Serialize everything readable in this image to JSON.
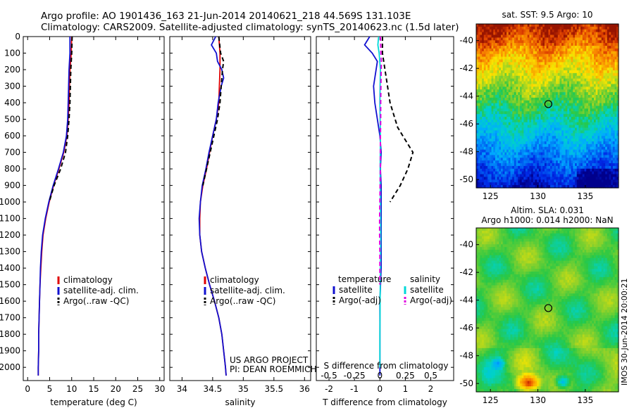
{
  "header": {
    "line1": "Argo profile: AO 1901436_163 21-Jun-2014 20140621_218 44.569S 131.103E",
    "line2": "Climatology: CARS2009. Satellite-adjusted climatology: synTS_20140623.nc (1.5d later)"
  },
  "colors": {
    "climatology": "#e00000",
    "satellite": "#1010d0",
    "argo": "#000000",
    "sat_salinity": "#00d8d8",
    "argo_salinity_diff": "#e000e0"
  },
  "chart_data": [
    {
      "type": "line",
      "name": "temperature-profile",
      "xlabel": "temperature (deg C)",
      "xlim": [
        -1,
        31
      ],
      "xticks": [
        0,
        5,
        10,
        15,
        20,
        25,
        30
      ],
      "ylim": [
        0,
        2080
      ],
      "yticks": [
        0,
        100,
        200,
        300,
        400,
        500,
        600,
        700,
        800,
        900,
        1000,
        1100,
        1200,
        1300,
        1400,
        1500,
        1600,
        1700,
        1800,
        1900,
        2000
      ],
      "legend": [
        "climatology",
        "satellite-adj. clim.",
        "Argo(..raw -QC)"
      ],
      "series": [
        {
          "name": "climatology",
          "style": "solid",
          "color": "#e00000",
          "depth": [
            0,
            100,
            200,
            300,
            400,
            500,
            600,
            700,
            800,
            900,
            1000,
            1100,
            1200,
            1300,
            1400,
            1500,
            1600,
            1700,
            1800,
            1900,
            2000,
            2050
          ],
          "values": [
            10.0,
            9.9,
            9.6,
            9.5,
            9.4,
            9.2,
            8.9,
            8.2,
            7.1,
            5.9,
            4.9,
            4.1,
            3.5,
            3.2,
            3.0,
            2.8,
            2.7,
            2.6,
            2.5,
            2.5,
            2.4,
            2.4
          ]
        },
        {
          "name": "satellite-adj. clim.",
          "style": "solid",
          "color": "#1010d0",
          "depth": [
            0,
            100,
            200,
            300,
            400,
            500,
            600,
            700,
            800,
            900,
            1000,
            1100,
            1200,
            1300,
            1400,
            1500,
            1600,
            1700,
            1800,
            1900,
            2000,
            2050
          ],
          "values": [
            9.6,
            9.6,
            9.4,
            9.3,
            9.2,
            9.1,
            8.8,
            8.1,
            7.0,
            5.8,
            4.8,
            4.0,
            3.4,
            3.1,
            2.9,
            2.8,
            2.7,
            2.6,
            2.5,
            2.5,
            2.4,
            2.4
          ]
        },
        {
          "name": "Argo(..raw -QC)",
          "style": "dashed",
          "color": "#000000",
          "depth": [
            0,
            100,
            200,
            300,
            400,
            500,
            600,
            700,
            800,
            900,
            1000
          ],
          "values": [
            10.1,
            10.0,
            9.8,
            9.7,
            9.6,
            9.4,
            9.1,
            8.6,
            7.5,
            6.0,
            4.9
          ]
        }
      ]
    },
    {
      "type": "line",
      "name": "salinity-profile",
      "xlabel": "salinity",
      "xlim": [
        33.8,
        36.1
      ],
      "xticks": [
        34,
        34.5,
        35,
        35.5,
        36
      ],
      "ylim": [
        0,
        2080
      ],
      "legend": [
        "climatology",
        "satellite-adj. clim.",
        "Argo(..raw -QC)"
      ],
      "annotations": [
        "US ARGO PROJECT",
        "PI: DEAN ROEMMICH"
      ],
      "series": [
        {
          "name": "climatology",
          "style": "solid",
          "color": "#e00000",
          "depth": [
            0,
            100,
            200,
            300,
            400,
            500,
            600,
            700,
            800,
            900,
            1000,
            1100,
            1200,
            1300,
            1400,
            1500,
            1600,
            1700,
            1800,
            1900,
            2000,
            2050
          ],
          "values": [
            34.6,
            34.62,
            34.62,
            34.61,
            34.6,
            34.56,
            34.5,
            34.45,
            34.4,
            34.34,
            34.3,
            34.29,
            34.29,
            34.32,
            34.38,
            34.45,
            34.53,
            34.6,
            34.65,
            34.68,
            34.71,
            34.72
          ]
        },
        {
          "name": "satellite-adj. clim.",
          "style": "solid",
          "color": "#1010d0",
          "depth": [
            0,
            50,
            100,
            150,
            200,
            250,
            300,
            400,
            500,
            600,
            700,
            800,
            900,
            1000,
            1100,
            1200,
            1300,
            1400,
            1500,
            1600,
            1700,
            1800,
            1900,
            2000,
            2050
          ],
          "values": [
            34.55,
            34.48,
            34.56,
            34.58,
            34.65,
            34.68,
            34.64,
            34.59,
            34.56,
            34.5,
            34.44,
            34.39,
            34.33,
            34.3,
            34.28,
            34.29,
            34.32,
            34.38,
            34.45,
            34.53,
            34.6,
            34.65,
            34.68,
            34.71,
            34.72
          ]
        },
        {
          "name": "Argo(..raw -QC)",
          "style": "dashed",
          "color": "#000000",
          "depth": [
            0,
            100,
            150,
            200,
            300,
            400,
            500,
            600,
            700,
            800,
            900
          ],
          "values": [
            34.6,
            34.63,
            34.68,
            34.66,
            34.64,
            34.62,
            34.58,
            34.52,
            34.46,
            34.4,
            34.34
          ]
        }
      ]
    },
    {
      "type": "line",
      "name": "difference-profile",
      "xlabel": "T difference from climatology",
      "xlabel2": "S difference from climatology",
      "xlim": [
        -2.5,
        2.9
      ],
      "xticks": [
        -2,
        -1,
        0,
        1,
        2
      ],
      "xticks_salinity": [
        -0.5,
        -0.25,
        0,
        0.25,
        0.5
      ],
      "xticks_salinity_labels": [
        "-0.5",
        "-0.25",
        "0",
        "0.25",
        "0.5"
      ],
      "ylim": [
        0,
        2080
      ],
      "legend_titles": [
        "temperature",
        "salinity"
      ],
      "legend": {
        "temperature": [
          "satellite",
          "Argo(-adj)"
        ],
        "salinity": [
          "satellite",
          "Argo(-adj)"
        ]
      },
      "series": [
        {
          "name": "temperature satellite",
          "style": "solid",
          "color": "#1010d0",
          "depth": [
            0,
            50,
            100,
            150,
            200,
            300,
            400,
            500,
            600,
            700,
            800,
            900,
            1000,
            1200,
            1400,
            1600,
            1800,
            2000,
            2050
          ],
          "values": [
            -0.4,
            -0.6,
            -0.3,
            -0.1,
            -0.15,
            -0.25,
            -0.2,
            -0.1,
            0.0,
            0.05,
            0.02,
            0.05,
            0.05,
            0.05,
            0.05,
            0.0,
            0.0,
            0.0,
            0.0
          ]
        },
        {
          "name": "temperature Argo(-adj)",
          "style": "dashed",
          "color": "#000000",
          "depth": [
            0,
            100,
            200,
            300,
            400,
            500,
            550,
            600,
            700,
            800,
            900,
            1000
          ],
          "values": [
            0.1,
            0.1,
            0.2,
            0.3,
            0.4,
            0.6,
            0.7,
            0.9,
            1.3,
            1.1,
            0.8,
            0.4
          ]
        },
        {
          "name": "salinity satellite",
          "style": "solid",
          "color": "#00d8d8",
          "depth": [
            0,
            50,
            100,
            200,
            300,
            400,
            500,
            600,
            800,
            1000,
            1200,
            1400,
            1600,
            1800,
            2000
          ],
          "values": [
            -0.05,
            -0.08,
            -0.03,
            0.02,
            0.01,
            0.0,
            0.01,
            0.02,
            0.01,
            0.02,
            0.03,
            0.02,
            0.01,
            0.0,
            0.0
          ]
        },
        {
          "name": "salinity Argo(-adj)",
          "style": "dashed",
          "color": "#e000e0",
          "depth": [
            0,
            50,
            100,
            150,
            200,
            300,
            400,
            500,
            600,
            700,
            800,
            900,
            1000,
            1100,
            1200,
            1300,
            1400,
            1500
          ],
          "values": [
            0.02,
            0.03,
            0.04,
            0.06,
            0.05,
            0.04,
            0.03,
            0.03,
            0.02,
            0.02,
            0.02,
            0.01,
            0.0,
            -0.01,
            -0.01,
            0.0,
            0.0,
            0.0
          ]
        }
      ]
    },
    {
      "type": "heatmap",
      "name": "sst-map",
      "title": "sat. SST: 9.5 Argo: 10",
      "xlim": [
        123.5,
        138.5
      ],
      "ylim": [
        -50.6,
        -38.8
      ],
      "xticks": [
        125,
        130,
        135
      ],
      "yticks": [
        -40,
        -42,
        -44,
        -46,
        -48,
        -50
      ],
      "marker": {
        "lon": 131.103,
        "lat": -44.569
      }
    },
    {
      "type": "heatmap",
      "name": "sla-map",
      "title": "Altim. SLA: 0.031",
      "subtitle": "Argo h1000: 0.014 h2000: NaN",
      "xlim": [
        123.5,
        138.5
      ],
      "ylim": [
        -50.6,
        -38.8
      ],
      "xticks": [
        125,
        130,
        135
      ],
      "yticks": [
        -40,
        -42,
        -44,
        -46,
        -48,
        -50
      ],
      "marker": {
        "lon": 131.103,
        "lat": -44.569
      }
    }
  ],
  "watermark": "IMOS 30-Jun-2014 20:00:21"
}
